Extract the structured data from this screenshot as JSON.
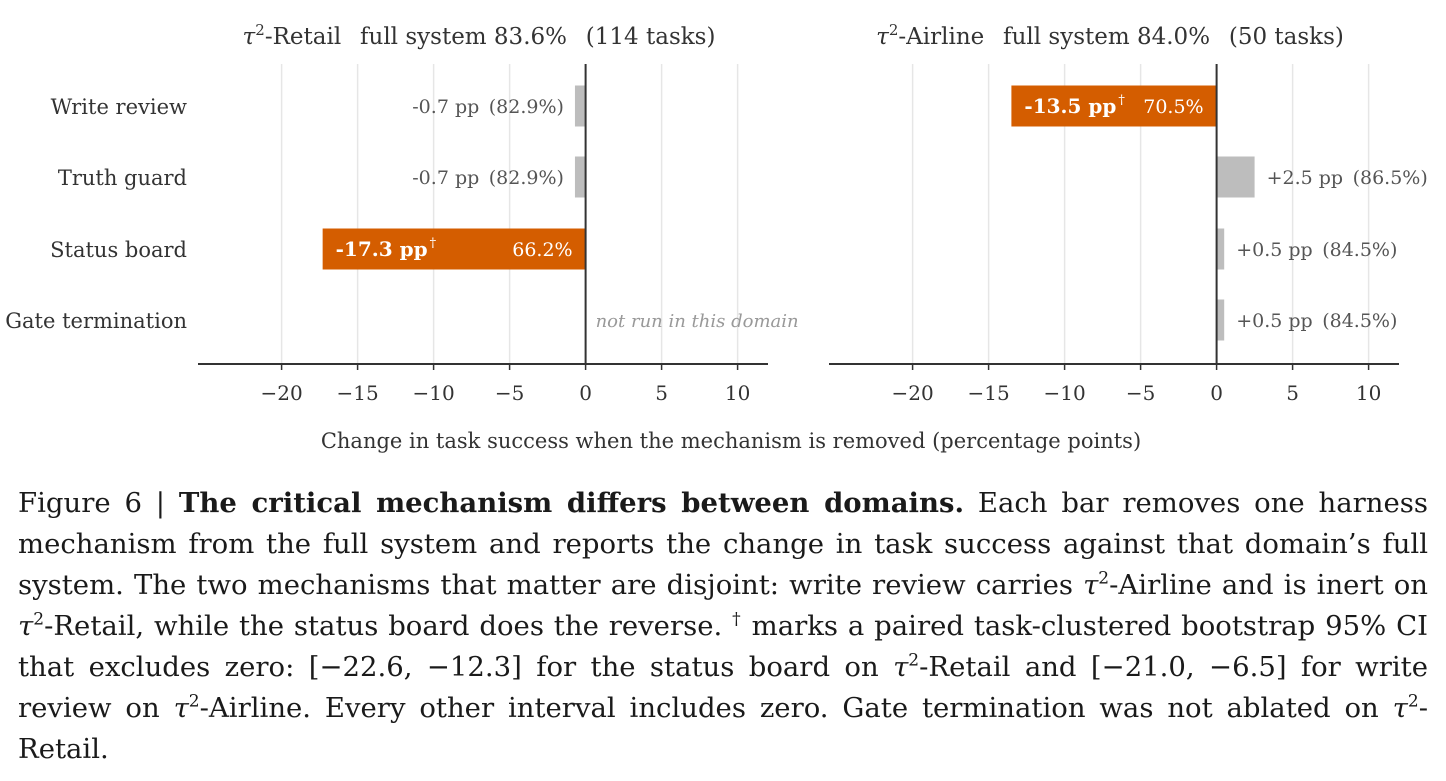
{
  "colors": {
    "highlight": "#d45d00",
    "neutral": "#bdbdbd",
    "grid": "#e6e6e6",
    "axis": "#333333",
    "text": "#333333",
    "muted": "#555555",
    "note": "#999999"
  },
  "chart_data": [
    {
      "type": "bar",
      "orientation": "horizontal",
      "domain_label": "τ2-Retail",
      "title_base": "-Retail",
      "full_system": "full system 83.6%",
      "tasks": "(114 tasks)",
      "categories": [
        "Write review",
        "Truth guard",
        "Status board",
        "Gate termination"
      ],
      "values": [
        -0.7,
        -0.7,
        -17.3,
        null
      ],
      "value_labels": [
        "-0.7 pp",
        "-0.7 pp",
        "-17.3 pp",
        ""
      ],
      "result_labels": [
        "(82.9%)",
        "(82.9%)",
        "66.2%",
        ""
      ],
      "significant": [
        false,
        false,
        true,
        false
      ],
      "note": "not run in this domain",
      "note_index": 3,
      "xlim": [
        -25.5,
        12
      ],
      "xticks": [
        -20,
        -15,
        -10,
        -5,
        0,
        5,
        10
      ],
      "xtick_labels": [
        "−20",
        "−15",
        "−10",
        "−5",
        "0",
        "5",
        "10"
      ],
      "grid": true
    },
    {
      "type": "bar",
      "orientation": "horizontal",
      "domain_label": "τ2-Airline",
      "title_base": "-Airline",
      "full_system": "full system 84.0%",
      "tasks": "(50 tasks)",
      "categories": [
        "Write review",
        "Truth guard",
        "Status board",
        "Gate termination"
      ],
      "values": [
        -13.5,
        2.5,
        0.5,
        0.5
      ],
      "value_labels": [
        "-13.5 pp",
        "+2.5 pp",
        "+0.5 pp",
        "+0.5 pp"
      ],
      "result_labels": [
        "70.5%",
        "(86.5%)",
        "(84.5%)",
        "(84.5%)"
      ],
      "significant": [
        true,
        false,
        false,
        false
      ],
      "xlim": [
        -25.5,
        12
      ],
      "xticks": [
        -20,
        -15,
        -10,
        -5,
        0,
        5,
        10
      ],
      "xtick_labels": [
        "−20",
        "−15",
        "−10",
        "−5",
        "0",
        "5",
        "10"
      ],
      "grid": true
    }
  ],
  "xlabel": "Change in task success when the mechanism is removed (percentage points)",
  "dagger": "†",
  "caption": {
    "fig_label": "Figure 6 | ",
    "bold": "The critical mechanism differs between domains.",
    "tau": "τ",
    "two": "2",
    "s1": " Each bar removes one harness mechanism from the full system and reports the change in task success against that domain’s full system. The two mechanisms that matter are disjoint: write review carries ",
    "s2": "-Airline and is inert on ",
    "s3": "-Retail, while the status board does the reverse. ",
    "s4": " marks a paired task-clustered bootstrap 95% CI that excludes zero: [−22.6, −12.3] for the status board on ",
    "s5": "-Retail and [−21.0, −6.5] for write review on ",
    "s6": "-Airline. Every other interval includes zero. Gate termination was not ablated on ",
    "s7": "-Retail."
  }
}
